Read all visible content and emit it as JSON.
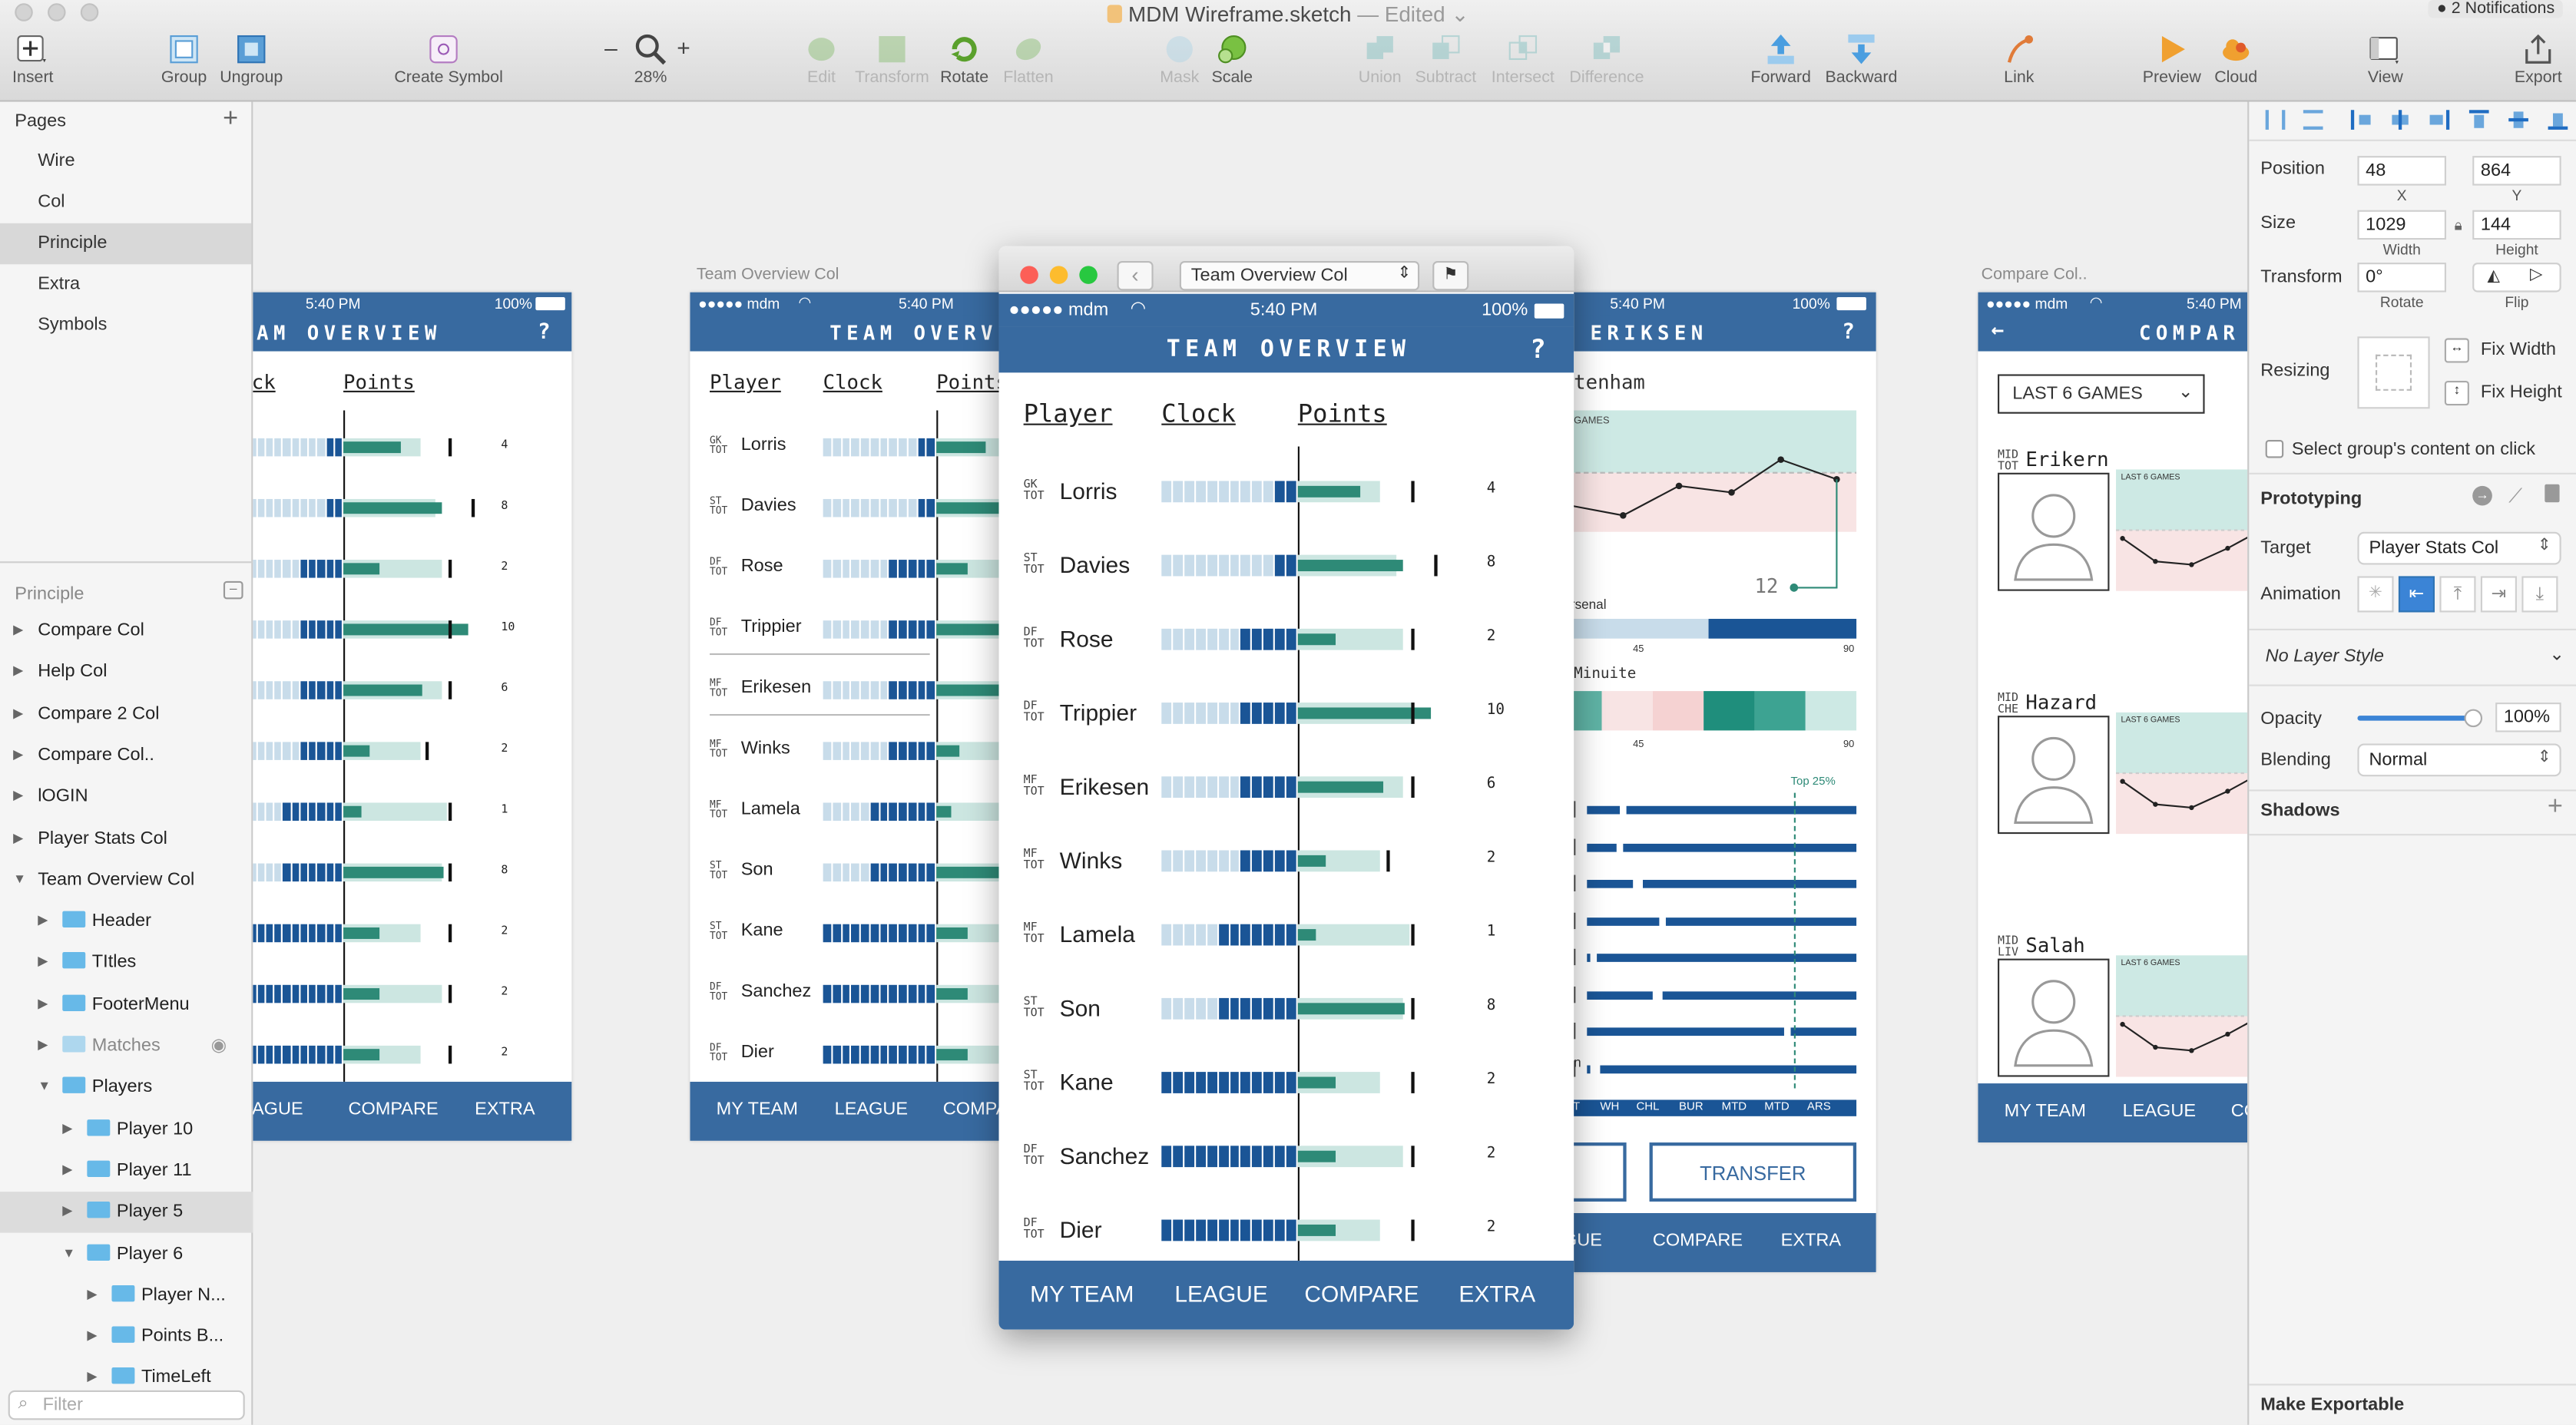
{
  "window": {
    "title": "MDM Wireframe.sketch",
    "edited": "— Edited",
    "notifications": "2 Notifications"
  },
  "toolbar": {
    "insert": "Insert",
    "group": "Group",
    "ungroup": "Ungroup",
    "create_symbol": "Create Symbol",
    "zoom_minus": "–",
    "zoom_plus": "+",
    "zoom": "28%",
    "edit": "Edit",
    "transform": "Transform",
    "rotate": "Rotate",
    "flatten": "Flatten",
    "mask": "Mask",
    "scale": "Scale",
    "union": "Union",
    "subtract": "Subtract",
    "intersect": "Intersect",
    "difference": "Difference",
    "forward": "Forward",
    "backward": "Backward",
    "link": "Link",
    "preview": "Preview",
    "cloud": "Cloud",
    "view": "View",
    "export": "Export"
  },
  "pages": {
    "header": "Pages",
    "add": "+",
    "items": [
      "Wire",
      "Col",
      "Principle",
      "Extra",
      "Symbols"
    ]
  },
  "layers": {
    "header": "Principle",
    "items": [
      {
        "label": "Compare Col"
      },
      {
        "label": "Help Col"
      },
      {
        "label": "Compare 2 Col"
      },
      {
        "label": "Compare Col.."
      },
      {
        "label": "lOGIN"
      },
      {
        "label": "Player Stats Col"
      },
      {
        "label": "Team Overview Col"
      },
      {
        "label": "Header"
      },
      {
        "label": "TItles"
      },
      {
        "label": "FooterMenu"
      },
      {
        "label": "Matches"
      },
      {
        "label": "Players"
      },
      {
        "label": "Player 10"
      },
      {
        "label": "Player 11"
      },
      {
        "label": "Player 5"
      },
      {
        "label": "Player 6"
      },
      {
        "label": "Player N..."
      },
      {
        "label": "Points B..."
      },
      {
        "label": "TimeLeft"
      }
    ],
    "filter_placeholder": "Filter"
  },
  "inspector": {
    "position_label": "Position",
    "x": "48",
    "x_label": "X",
    "y": "864",
    "y_label": "Y",
    "size_label": "Size",
    "width": "1029",
    "width_label": "Width",
    "height": "144",
    "height_label": "Height",
    "transform_label": "Transform",
    "rotate": "0°",
    "rotate_label": "Rotate",
    "flip_label": "Flip",
    "resizing_label": "Resizing",
    "fix_width": "Fix Width",
    "fix_height": "Fix Height",
    "select_group": "Select group's content on click",
    "prototyping": "Prototyping",
    "target_label": "Target",
    "target": "Player Stats Col",
    "animation_label": "Animation",
    "layer_style": "No Layer Style",
    "opacity_label": "Opacity",
    "opacity": "100%",
    "opacity_value": 1.0,
    "blending_label": "Blending",
    "blending": "Normal",
    "shadows": "Shadows",
    "make_exportable": "Make Exportable"
  },
  "artboard_labels": {
    "team_overview_col": "Team Overview Col",
    "compare_col": "Compare Col.."
  },
  "app": {
    "carrier": "●●●●● mdm",
    "time": "5:40 PM",
    "battery": "100%",
    "title": "TEAM OVERVIEW",
    "help": "?",
    "col_player": "Player",
    "col_clock": "Clock",
    "col_points": "Points",
    "footer": [
      "MY TEAM",
      "LEAGUE",
      "COMPARE",
      "EXTRA"
    ],
    "players": [
      {
        "pos": "GK",
        "team": "TOT",
        "name": "Lorris",
        "points": "4",
        "clock_done": 2,
        "pts_track": 0.67,
        "pts_fill": 0.5,
        "marker": 0.92
      },
      {
        "pos": "ST",
        "team": "TOT",
        "name": "Davies",
        "points": "8",
        "clock_done": 2,
        "pts_track": 0.8,
        "pts_fill": 0.85,
        "marker": 1.11
      },
      {
        "pos": "DF",
        "team": "TOT",
        "name": "Rose",
        "points": "2",
        "clock_done": 5,
        "pts_track": 0.85,
        "pts_fill": 0.31,
        "marker": 0.92
      },
      {
        "pos": "DF",
        "team": "TOT",
        "name": "Trippier",
        "points": "10",
        "clock_done": 5,
        "pts_track": 0.93,
        "pts_fill": 1.08,
        "marker": 0.92
      },
      {
        "pos": "MF",
        "team": "TOT",
        "name": "Erikesen",
        "points": "6",
        "clock_done": 5,
        "pts_track": 0.85,
        "pts_fill": 0.69,
        "marker": 0.92
      },
      {
        "pos": "MF",
        "team": "TOT",
        "name": "Winks",
        "points": "2",
        "clock_done": 5,
        "pts_track": 0.67,
        "pts_fill": 0.23,
        "marker": 0.72
      },
      {
        "pos": "MF",
        "team": "TOT",
        "name": "Lamela",
        "points": "1",
        "clock_done": 7,
        "pts_track": 0.9,
        "pts_fill": 0.15,
        "marker": 0.92
      },
      {
        "pos": "ST",
        "team": "TOT",
        "name": "Son",
        "points": "8",
        "clock_done": 7,
        "pts_track": 0.85,
        "pts_fill": 0.87,
        "marker": 0.92
      },
      {
        "pos": "ST",
        "team": "TOT",
        "name": "Kane",
        "points": "2",
        "clock_done": 12,
        "pts_track": 0.67,
        "pts_fill": 0.31,
        "marker": 0.92
      },
      {
        "pos": "DF",
        "team": "TOT",
        "name": "Sanchez",
        "points": "2",
        "clock_done": 12,
        "pts_track": 0.85,
        "pts_fill": 0.31,
        "marker": 0.92
      },
      {
        "pos": "DF",
        "team": "TOT",
        "name": "Dier",
        "points": "2",
        "clock_done": 12,
        "pts_track": 0.67,
        "pts_fill": 0.31,
        "marker": 0.92
      }
    ]
  },
  "preview_window": {
    "selector": "Team Overview Col"
  },
  "player_stats": {
    "title": "ERIKSEN",
    "opponent": "tenham",
    "games_label": "GAMES",
    "value": "12",
    "team2": "rsenal",
    "tick45": "45",
    "tick90": "90",
    "minute_label": "Minuite",
    "top_label": "Top 25%",
    "teams": [
      "OT",
      "WH",
      "CHL",
      "BUR",
      "MTD",
      "MTD",
      "ARS"
    ],
    "row_letter": "n",
    "transfer": "TRANSFER",
    "footer": [
      "AGUE",
      "COMPARE",
      "EXTRA"
    ]
  },
  "compare": {
    "dropdown": "LAST 6 GAMES",
    "chart_label": "LAST 6 GAMES",
    "footer": [
      "MY TEAM",
      "LEAGUE",
      "CO"
    ],
    "players": [
      {
        "pos": "MID",
        "team": "TOT",
        "name": "Erikern"
      },
      {
        "pos": "MID",
        "team": "CHE",
        "name": "Hazard"
      },
      {
        "pos": "MID",
        "team": "LIV",
        "name": "Salah"
      }
    ]
  },
  "left_artboard": {
    "title_partial": "EAM OVERVIEW",
    "col_clock": "ock",
    "col_points": "Points",
    "footer": [
      "EAGUE",
      "COMPARE",
      "EXTRA"
    ]
  },
  "colors": {
    "primary": "#386aa0",
    "clock_dark": "#1a5596",
    "clock_light": "#c8dcea",
    "points_fill": "#2e8a77",
    "points_track": "#cce6e1",
    "chart_green": "#cde9e4",
    "chart_pink": "#f8e4e4"
  }
}
